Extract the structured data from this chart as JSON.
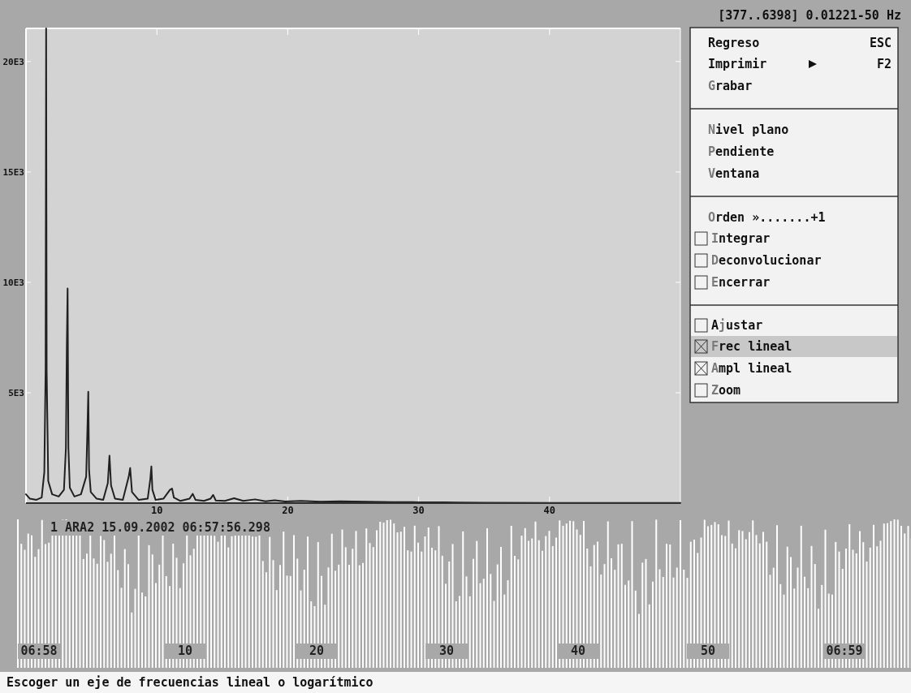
{
  "chart_data": {
    "type": "line",
    "subtitle": "[377..6398] 0.01221-50 Hz",
    "x": [
      0,
      0.3,
      0.8,
      1.2,
      1.4,
      1.5,
      1.54,
      1.58,
      1.7,
      2.0,
      2.5,
      2.9,
      3.05,
      3.12,
      3.18,
      3.24,
      3.35,
      3.7,
      4.2,
      4.6,
      4.7,
      4.76,
      4.82,
      4.95,
      5.4,
      5.9,
      6.25,
      6.38,
      6.5,
      6.8,
      7.4,
      7.85,
      7.96,
      8.1,
      8.6,
      9.3,
      9.5,
      9.58,
      9.66,
      9.9,
      10.5,
      11.0,
      11.16,
      11.3,
      11.8,
      12.5,
      12.74,
      12.95,
      13.6,
      14.1,
      14.3,
      14.5,
      15.2,
      15.9,
      16.6,
      17.5,
      18.3,
      19.0,
      19.8,
      21,
      22.5,
      24,
      26,
      28,
      30,
      32,
      33,
      35,
      40,
      45,
      50
    ],
    "series": [
      {
        "color": "#202020",
        "values": [
          400,
          200,
          150,
          250,
          1400,
          6070,
          21500,
          6000,
          1000,
          400,
          300,
          600,
          2500,
          7100,
          9720,
          2500,
          700,
          300,
          400,
          1200,
          3500,
          5040,
          1500,
          500,
          200,
          150,
          900,
          2150,
          800,
          200,
          150,
          1200,
          1590,
          500,
          150,
          200,
          1100,
          1660,
          600,
          150,
          200,
          600,
          660,
          250,
          100,
          200,
          420,
          150,
          100,
          200,
          370,
          120,
          100,
          220,
          100,
          170,
          80,
          130,
          70,
          100,
          60,
          80,
          60,
          50,
          40,
          40,
          30,
          20,
          10,
          10,
          10
        ]
      }
    ],
    "xlim": [
      0,
      50
    ],
    "xticks": [
      10,
      20,
      30,
      40
    ],
    "ylim": [
      0,
      21500
    ],
    "yticks": [
      {
        "value": 5000,
        "label": "5E3"
      },
      {
        "value": 10000,
        "label": "10E3"
      },
      {
        "value": 15000,
        "label": "15E3"
      },
      {
        "value": 20000,
        "label": "20E3"
      }
    ],
    "grid": false,
    "marker": "none",
    "line_style": "solid",
    "annotations": [
      "Regreso",
      "ESC",
      "Imprimir",
      "F2",
      "Grabar",
      "Nivel plano",
      "Pendiente",
      "Ventana",
      "Orden ».......+1",
      "Integrar",
      "Deconvolucionar",
      "Encerrar",
      "Ajustar",
      "Frec lineal",
      "Ampl lineal",
      "Zoom",
      "1 ARA2 15.09.2002 06:57:56.298",
      "Escoger un eje de frecuencias lineal o logarítmico",
      "06:58",
      "10",
      "20",
      "30",
      "40",
      "50",
      "06:59"
    ]
  }
}
